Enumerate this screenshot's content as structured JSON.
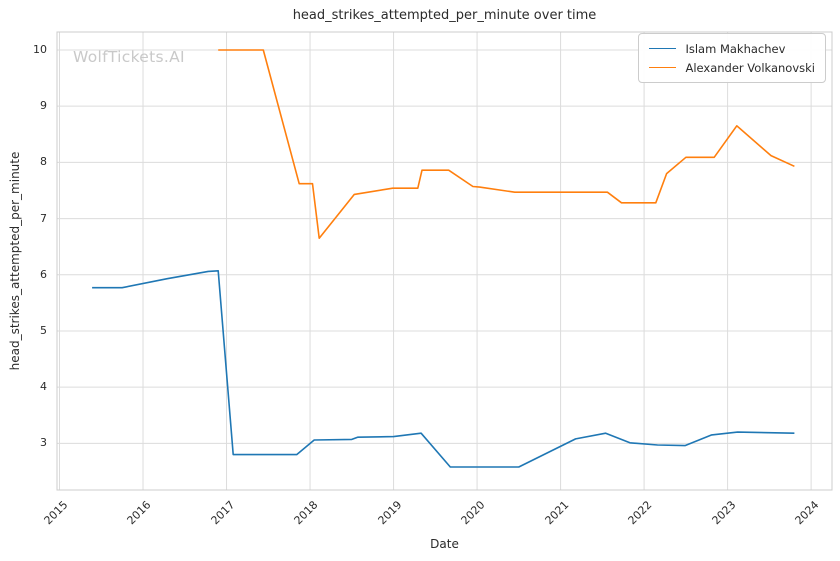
{
  "figure": {
    "title": "head_strikes_attempted_per_minute over time",
    "watermark": "WolfTickets.AI"
  },
  "chart_data": {
    "type": "line",
    "title": "head_strikes_attempted_per_minute over time",
    "xlabel": "Date",
    "ylabel": "head_strikes_attempted_per_minute",
    "x_ticks": [
      2015,
      2016,
      2017,
      2018,
      2019,
      2020,
      2021,
      2022,
      2023,
      2024
    ],
    "y_ticks": [
      3,
      4,
      5,
      6,
      7,
      8,
      9,
      10
    ],
    "xlim": [
      2014.97,
      2024.25
    ],
    "ylim": [
      2.17,
      10.32
    ],
    "grid": true,
    "grid_color": "#dcdcdc",
    "border_color": "#cccccc",
    "legend_position": "upper right",
    "series": [
      {
        "name": "Islam Makhachev",
        "color": "#1f77b4",
        "points": [
          [
            2015.39,
            5.77
          ],
          [
            2015.75,
            5.77
          ],
          [
            2016.29,
            5.93
          ],
          [
            2016.78,
            6.06
          ],
          [
            2016.9,
            6.07
          ],
          [
            2017.08,
            2.8
          ],
          [
            2017.84,
            2.8
          ],
          [
            2018.05,
            3.06
          ],
          [
            2018.5,
            3.07
          ],
          [
            2018.57,
            3.11
          ],
          [
            2019.0,
            3.12
          ],
          [
            2019.33,
            3.18
          ],
          [
            2019.68,
            2.58
          ],
          [
            2020.5,
            2.58
          ],
          [
            2021.18,
            3.08
          ],
          [
            2021.54,
            3.18
          ],
          [
            2021.83,
            3.01
          ],
          [
            2022.16,
            2.97
          ],
          [
            2022.49,
            2.96
          ],
          [
            2022.81,
            3.15
          ],
          [
            2023.12,
            3.2
          ],
          [
            2023.8,
            3.18
          ]
        ]
      },
      {
        "name": "Alexander Volkanovski",
        "color": "#ff7f0e",
        "points": [
          [
            2016.9,
            10.0
          ],
          [
            2017.44,
            10.0
          ],
          [
            2017.87,
            7.62
          ],
          [
            2018.03,
            7.62
          ],
          [
            2018.11,
            6.65
          ],
          [
            2018.53,
            7.43
          ],
          [
            2018.99,
            7.54
          ],
          [
            2019.29,
            7.54
          ],
          [
            2019.34,
            7.86
          ],
          [
            2019.66,
            7.86
          ],
          [
            2019.95,
            7.57
          ],
          [
            2020.03,
            7.56
          ],
          [
            2020.45,
            7.47
          ],
          [
            2021.56,
            7.47
          ],
          [
            2021.73,
            7.28
          ],
          [
            2022.14,
            7.28
          ],
          [
            2022.27,
            7.8
          ],
          [
            2022.5,
            8.09
          ],
          [
            2022.84,
            8.09
          ],
          [
            2023.11,
            8.65
          ],
          [
            2023.52,
            8.12
          ],
          [
            2023.8,
            7.93
          ]
        ]
      }
    ]
  }
}
